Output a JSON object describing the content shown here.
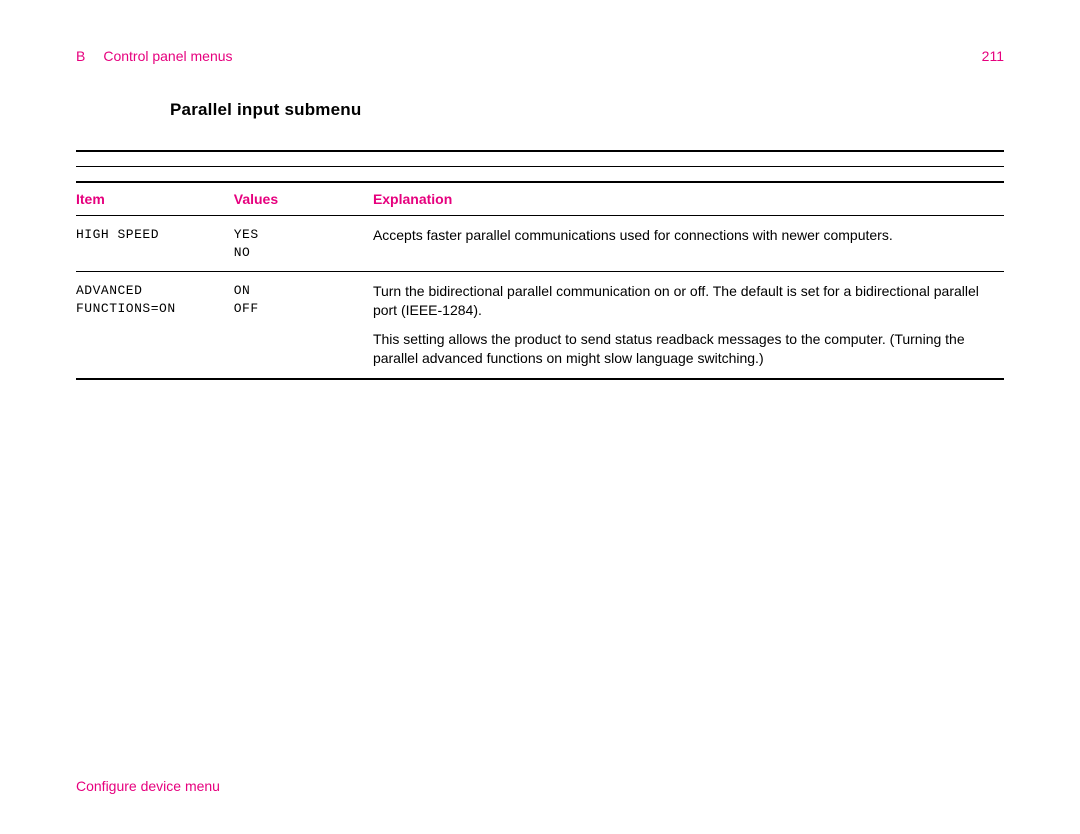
{
  "header": {
    "section_letter": "B",
    "section_title": "Control panel menus",
    "page_number": "211"
  },
  "title": "Parallel input submenu",
  "columns": {
    "item": "Item",
    "values": "Values",
    "explanation": "Explanation"
  },
  "rows": [
    {
      "item": "HIGH SPEED",
      "values": "YES\nNO",
      "explanation": [
        "Accepts faster parallel communications used for connections with newer computers."
      ]
    },
    {
      "item": "ADVANCED\nFUNCTIONS=ON",
      "values": "ON\nOFF",
      "explanation": [
        "Turn the bidirectional parallel communication on or off. The default is set for a bidirectional parallel port (IEEE-1284).",
        "This setting allows the product to send status readback messages to the computer. (Turning the parallel advanced functions on might slow language switching.)"
      ]
    }
  ],
  "footer": "Configure device menu",
  "colors": {
    "accent": "#e6007e",
    "text": "#000000",
    "background": "#ffffff"
  }
}
